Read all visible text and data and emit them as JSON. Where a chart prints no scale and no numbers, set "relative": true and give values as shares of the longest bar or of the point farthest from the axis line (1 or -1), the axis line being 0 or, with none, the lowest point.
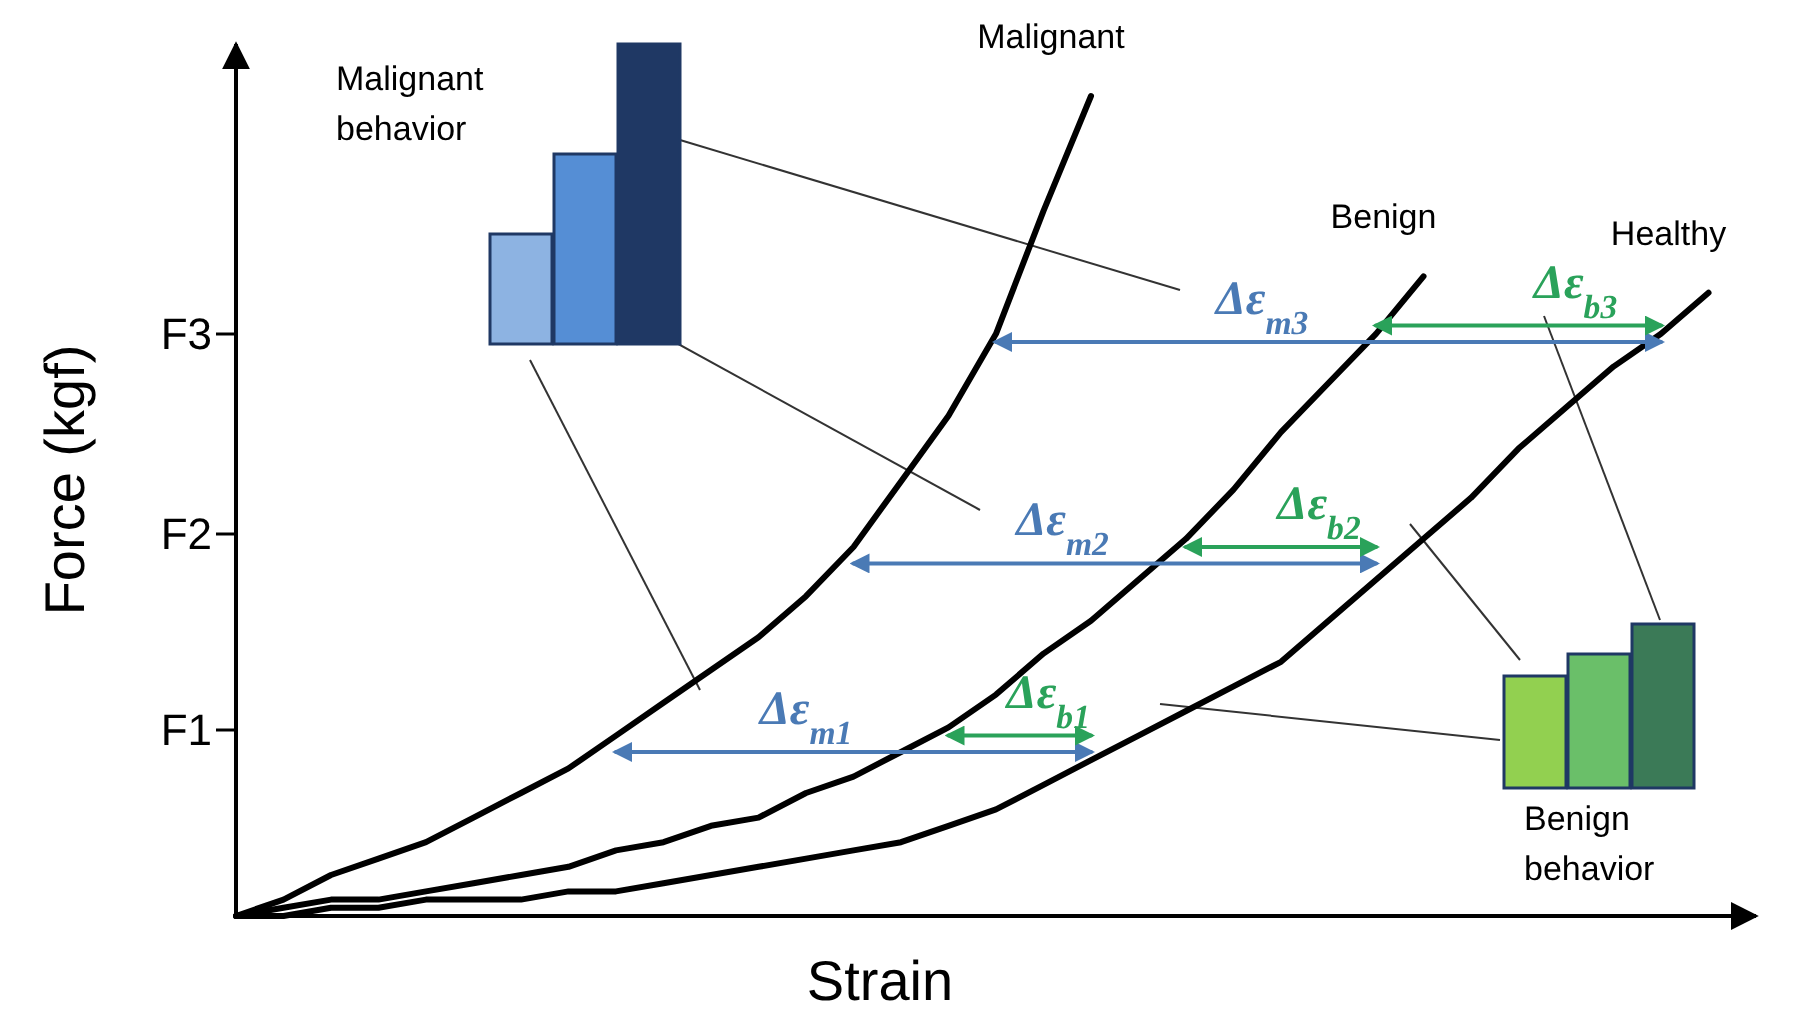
{
  "chart_data": {
    "type": "line",
    "relative": true,
    "xlabel": "Strain",
    "ylabel": "Force (kgf)",
    "categories": [
      null,
      null,
      null,
      null,
      null,
      null,
      null,
      null,
      null,
      null,
      null,
      null,
      null,
      null,
      null,
      null,
      null,
      null,
      null,
      null,
      null,
      null,
      null,
      null,
      null,
      null,
      null,
      null,
      null,
      null,
      null,
      null,
      null
    ],
    "series": [
      {
        "name": "Malignant",
        "color": "#000000",
        "values": [
          0,
          0.02,
          0.05,
          0.07,
          0.09,
          0.12,
          0.15,
          0.18,
          0.22,
          0.26,
          0.3,
          0.34,
          0.39,
          0.45,
          0.53,
          0.61,
          0.71,
          0.86,
          1,
          null,
          null,
          null,
          null,
          null,
          null,
          null,
          null,
          null,
          null,
          null,
          null,
          null,
          null
        ]
      },
      {
        "name": "Benign",
        "color": "#000000",
        "values": [
          0,
          0.01,
          0.02,
          0.02,
          0.03,
          0.04,
          0.05,
          0.06,
          0.08,
          0.09,
          0.11,
          0.12,
          0.15,
          0.17,
          0.2,
          0.23,
          0.27,
          0.32,
          0.36,
          0.41,
          0.46,
          0.52,
          0.59,
          0.65,
          0.71,
          0.78,
          null,
          null,
          null,
          null,
          null,
          null,
          null
        ]
      },
      {
        "name": "Healthy",
        "color": "#000000",
        "values": [
          0,
          0,
          0.01,
          0.01,
          0.02,
          0.02,
          0.02,
          0.03,
          0.03,
          0.04,
          0.05,
          0.06,
          0.07,
          0.08,
          0.09,
          0.11,
          0.13,
          0.16,
          0.19,
          0.22,
          0.25,
          0.28,
          0.31,
          0.36,
          0.41,
          0.46,
          0.51,
          0.57,
          0.62,
          0.67,
          0.71,
          0.76,
          null
        ]
      },
      {
        "color": "#4a7ab5",
        "values": [
          null,
          null,
          null,
          null,
          null,
          null,
          null,
          null,
          0.2,
          0.2,
          0.2,
          0.2,
          0.2,
          0.2,
          0.2,
          0.2,
          0.2,
          0.2,
          0.2,
          null,
          null,
          null,
          null,
          null,
          null,
          null,
          null,
          null,
          null,
          null,
          null,
          null,
          null
        ]
      },
      {
        "color": "#4a7ab5",
        "values": [
          null,
          null,
          null,
          null,
          null,
          null,
          null,
          null,
          null,
          null,
          null,
          null,
          null,
          0.43,
          0.43,
          0.43,
          0.43,
          0.43,
          0.43,
          0.43,
          0.43,
          0.43,
          0.43,
          0.43,
          0.43,
          null,
          null,
          null,
          null,
          null,
          null,
          null,
          null
        ]
      },
      {
        "color": "#4a7ab5",
        "values": [
          null,
          null,
          null,
          null,
          null,
          null,
          null,
          null,
          null,
          null,
          null,
          null,
          null,
          null,
          null,
          null,
          0.7,
          0.7,
          0.7,
          0.7,
          0.7,
          0.7,
          0.7,
          0.7,
          0.7,
          0.7,
          0.7,
          0.7,
          0.7,
          0.7,
          0.7,
          null,
          null
        ]
      },
      {
        "color": "#2aa25a",
        "values": [
          null,
          null,
          null,
          null,
          null,
          null,
          null,
          null,
          null,
          null,
          null,
          null,
          null,
          null,
          null,
          0.22,
          0.22,
          0.22,
          0.22,
          null,
          null,
          null,
          null,
          null,
          null,
          null,
          null,
          null,
          null,
          null,
          null,
          null,
          null
        ]
      },
      {
        "color": "#2aa25a",
        "values": [
          null,
          null,
          null,
          null,
          null,
          null,
          null,
          null,
          null,
          null,
          null,
          null,
          null,
          null,
          null,
          null,
          null,
          null,
          null,
          null,
          0.45,
          0.45,
          0.45,
          0.45,
          0.45,
          null,
          null,
          null,
          null,
          null,
          null,
          null,
          null
        ]
      },
      {
        "color": "#2aa25a",
        "values": [
          null,
          null,
          null,
          null,
          null,
          null,
          null,
          null,
          null,
          null,
          null,
          null,
          null,
          null,
          null,
          null,
          null,
          null,
          null,
          null,
          null,
          null,
          null,
          null,
          0.72,
          0.72,
          0.72,
          0.72,
          0.72,
          0.72,
          0.72,
          null,
          null
        ]
      }
    ],
    "annotations": [
      "F1",
      "F2",
      "F3",
      "Δε$_{m1}$",
      "Δε$_{m2}$",
      "Δε$_{m3}$",
      "Δε$_{b1}$",
      "Δε$_{b2}$",
      "Δε$_{b3}$",
      "Malignant behavior",
      "Benign behavior"
    ]
  }
}
